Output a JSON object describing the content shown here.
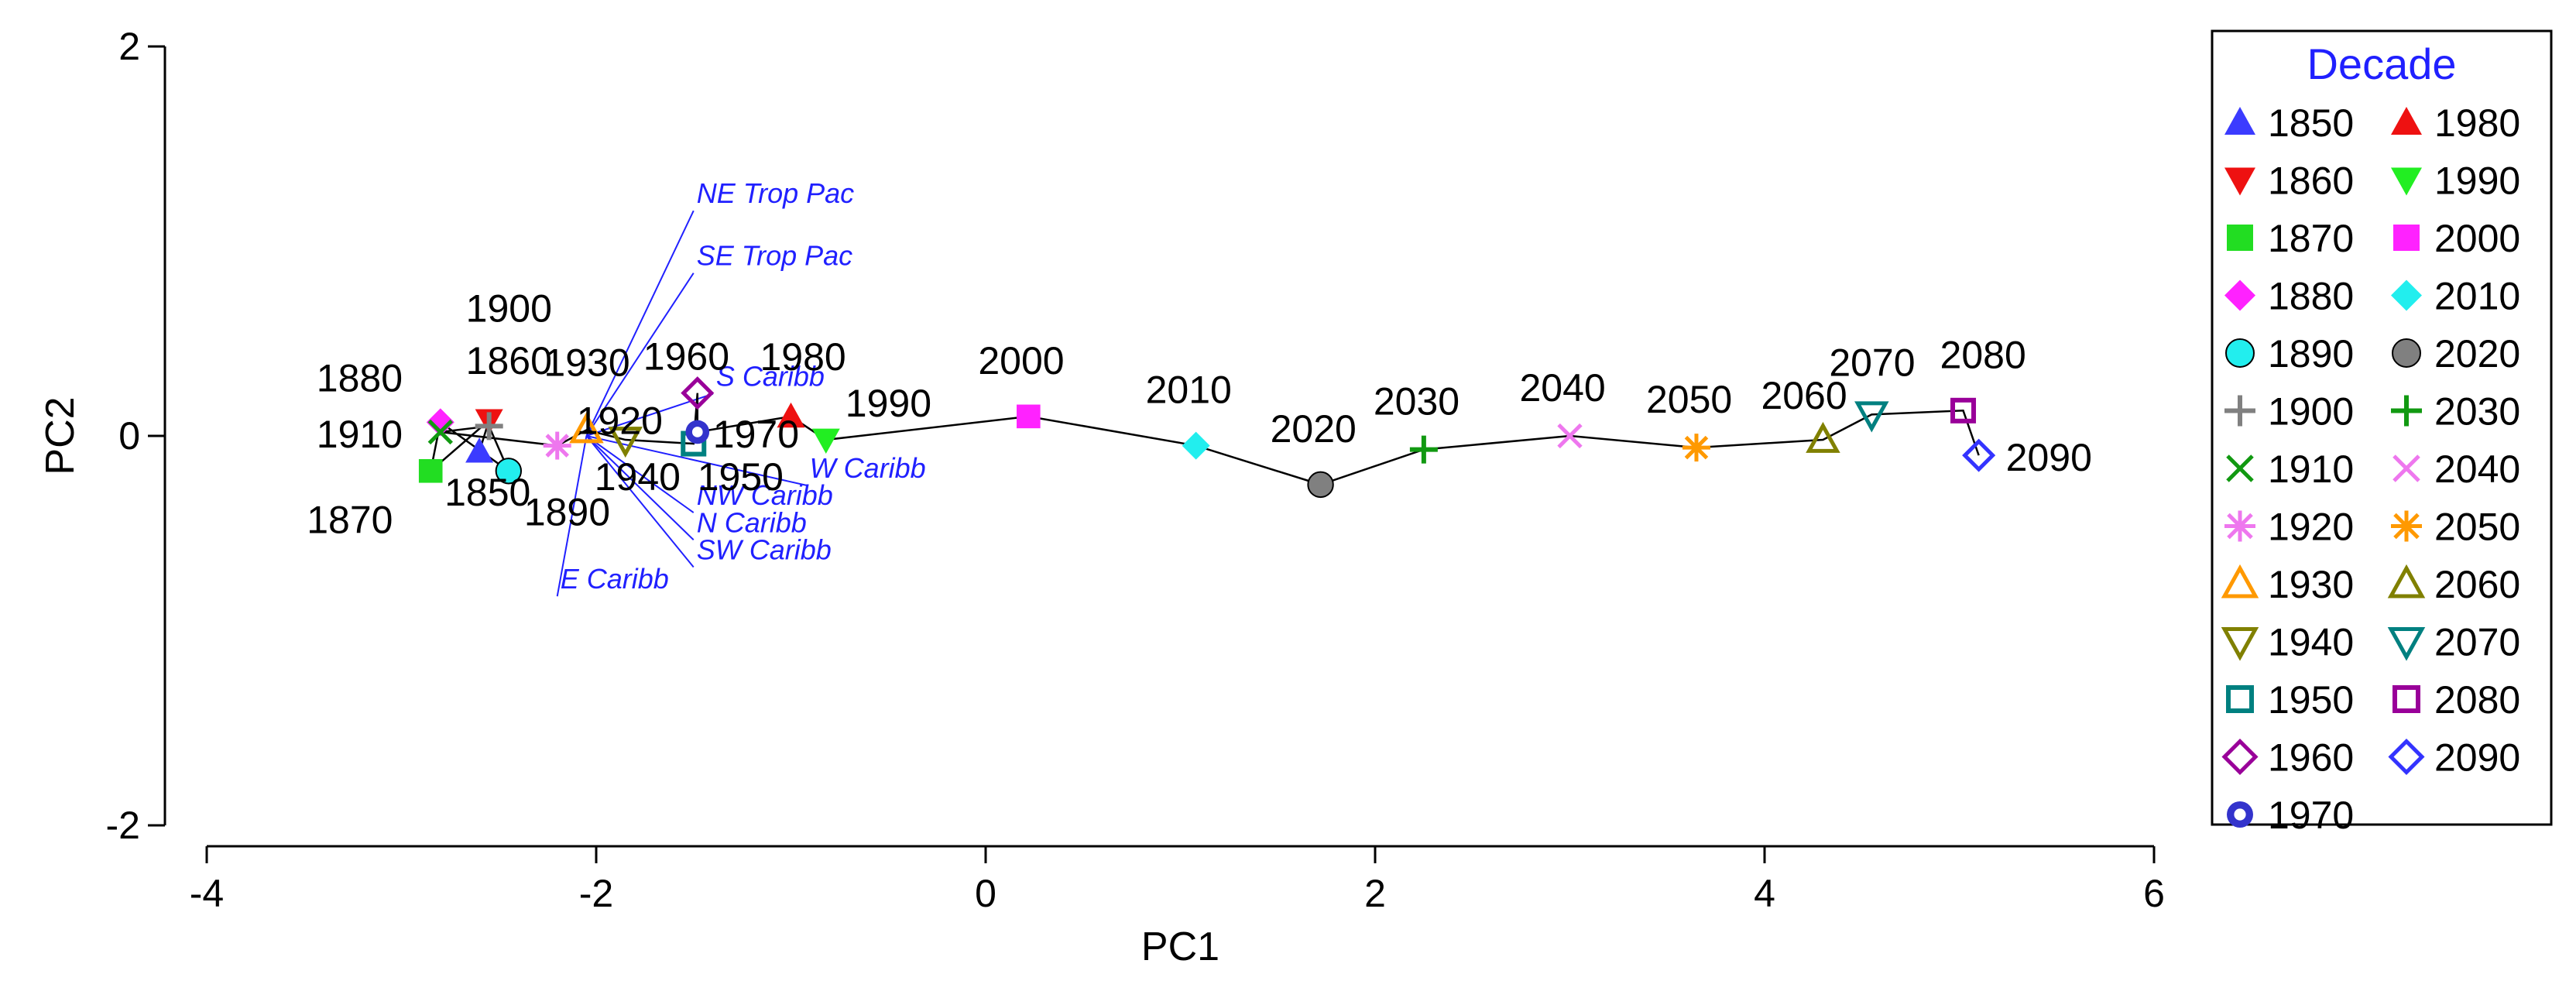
{
  "chart_data": {
    "type": "scatter",
    "xlabel": "PC1",
    "ylabel": "PC2",
    "xlim": [
      -4,
      6
    ],
    "ylim": [
      -2,
      2
    ],
    "xticks": [
      "-4",
      "-2",
      "0",
      "2",
      "4",
      "6"
    ],
    "yticks": [
      "-2",
      "0",
      "2"
    ],
    "grid": false,
    "legend_position": "right",
    "legend_title": "Decade",
    "legend_title_color": "#2020ff",
    "trajectory": "connected in decade order",
    "points": [
      {
        "decade": "1850",
        "x": -2.6,
        "y": -0.08,
        "marker": "triangle-up-filled",
        "color": "#3b3bff"
      },
      {
        "decade": "1860",
        "x": -2.55,
        "y": 0.08,
        "marker": "triangle-down-filled",
        "color": "#ee1111"
      },
      {
        "decade": "1870",
        "x": -2.85,
        "y": -0.18,
        "marker": "square-filled",
        "color": "#22dd22"
      },
      {
        "decade": "1880",
        "x": -2.8,
        "y": 0.07,
        "marker": "diamond-filled",
        "color": "#ff22ff"
      },
      {
        "decade": "1890",
        "x": -2.45,
        "y": -0.18,
        "marker": "circle-filled",
        "color": "#22eeee"
      },
      {
        "decade": "1900",
        "x": -2.55,
        "y": 0.05,
        "marker": "plus",
        "color": "#808080"
      },
      {
        "decade": "1910",
        "x": -2.8,
        "y": 0.02,
        "marker": "x",
        "color": "#119911"
      },
      {
        "decade": "1920",
        "x": -2.2,
        "y": -0.05,
        "marker": "asterisk",
        "color": "#ee77ee"
      },
      {
        "decade": "1930",
        "x": -2.05,
        "y": 0.03,
        "marker": "triangle-up-open",
        "color": "#ff9900"
      },
      {
        "decade": "1940",
        "x": -1.85,
        "y": -0.02,
        "marker": "triangle-down-open",
        "color": "#808000"
      },
      {
        "decade": "1950",
        "x": -1.5,
        "y": -0.04,
        "marker": "square-open",
        "color": "#008080"
      },
      {
        "decade": "1960",
        "x": -1.48,
        "y": 0.22,
        "marker": "diamond-open",
        "color": "#990099"
      },
      {
        "decade": "1970",
        "x": -1.48,
        "y": 0.02,
        "marker": "circle-dot",
        "color": "#3333cc"
      },
      {
        "decade": "1980",
        "x": -1.0,
        "y": 0.1,
        "marker": "triangle-up-filled",
        "color": "#ee1111"
      },
      {
        "decade": "1990",
        "x": -0.82,
        "y": -0.02,
        "marker": "triangle-down-filled",
        "color": "#22ee22"
      },
      {
        "decade": "2000",
        "x": 0.22,
        "y": 0.1,
        "marker": "square-filled",
        "color": "#ff22ff"
      },
      {
        "decade": "2010",
        "x": 1.08,
        "y": -0.05,
        "marker": "diamond-filled",
        "color": "#22eeee"
      },
      {
        "decade": "2020",
        "x": 1.72,
        "y": -0.25,
        "marker": "circle-filled",
        "color": "#808080"
      },
      {
        "decade": "2030",
        "x": 2.25,
        "y": -0.07,
        "marker": "plus",
        "color": "#119911"
      },
      {
        "decade": "2040",
        "x": 3.0,
        "y": 0.0,
        "marker": "x",
        "color": "#ee77ee"
      },
      {
        "decade": "2050",
        "x": 3.65,
        "y": -0.06,
        "marker": "asterisk",
        "color": "#ff9900"
      },
      {
        "decade": "2060",
        "x": 4.3,
        "y": -0.02,
        "marker": "triangle-up-open",
        "color": "#808000"
      },
      {
        "decade": "2070",
        "x": 4.55,
        "y": 0.11,
        "marker": "triangle-down-open",
        "color": "#008080"
      },
      {
        "decade": "2080",
        "x": 5.02,
        "y": 0.13,
        "marker": "square-open",
        "color": "#990099"
      },
      {
        "decade": "2090",
        "x": 5.1,
        "y": -0.1,
        "marker": "diamond-open",
        "color": "#3333ff"
      }
    ],
    "region_vectors": [
      {
        "name": "NE Trop Pac",
        "x": -1.5,
        "y": 1.18
      },
      {
        "name": "SE Trop Pac",
        "x": -1.5,
        "y": 0.86
      },
      {
        "name": "S Caribb",
        "x": -1.4,
        "y": 0.24
      },
      {
        "name": "W Caribb",
        "x": -0.92,
        "y": -0.23
      },
      {
        "name": "NW Caribb",
        "x": -1.5,
        "y": -0.37
      },
      {
        "name": "N Caribb",
        "x": -1.5,
        "y": -0.51
      },
      {
        "name": "SW Caribb",
        "x": -1.5,
        "y": -0.65
      },
      {
        "name": "E Caribb",
        "x": -2.2,
        "y": -0.8
      }
    ],
    "region_origin": {
      "x": -2.05,
      "y": 0.0
    }
  }
}
